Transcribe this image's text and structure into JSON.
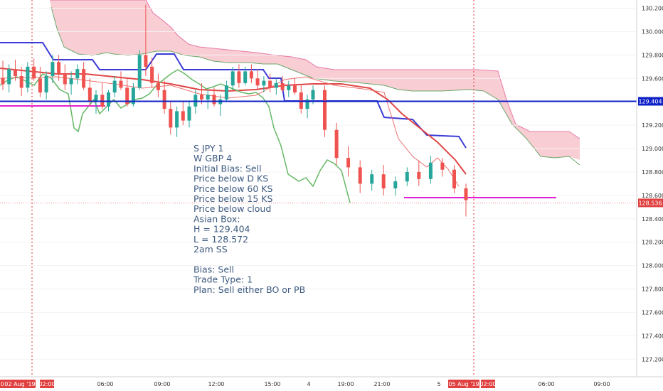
{
  "colors": {
    "cloud_fill": "#f8c8cf",
    "cloud_edge_a": "#e878a8",
    "cloud_edge_b": "#6aa86a",
    "candle_up": "#26a69a",
    "candle_down": "#ef5350",
    "blue_line": "#3b3bd8",
    "red_line": "#e04646",
    "green_line": "#66b866",
    "thin_red": "#f07070",
    "magenta": "#e020d0",
    "hline_blue": "#0d20c8",
    "current_price_dot": "#e05050",
    "session_line": "#e03030",
    "axis_text": "#333333",
    "note_text": "#3d5a80",
    "badge_blue": "#0d20c8",
    "badge_red": "#e04040"
  },
  "chart_data": {
    "type": "candlestick",
    "y_axis": {
      "ylim": [
        127.05,
        130.27
      ],
      "ticks": [
        "130.200",
        "130.000",
        "129.800",
        "129.600",
        "129.400",
        "129.200",
        "129.000",
        "128.800",
        "128.600",
        "128.400",
        "128.200",
        "128.000",
        "127.800",
        "127.600",
        "127.400",
        "127.200"
      ]
    },
    "x_axis": {
      "ticks": [
        "01",
        "02 Aug '19",
        "02:00",
        "06:00",
        "09:00",
        "12:00",
        "15:00",
        "4",
        "19:00",
        "21:00",
        "5",
        "05 Aug '19",
        "02:00",
        "06:00",
        "09:00"
      ]
    },
    "price_lines": [
      {
        "label": "129.404",
        "value": 129.404,
        "style": "solid",
        "color_key": "hline_blue"
      },
      {
        "label": "128.536",
        "value": 128.536,
        "style": "dotted",
        "color_key": "current_price_dot"
      }
    ],
    "annotation_lines": [
      "S JPY 1",
      "W GBP 4",
      "Initial Bias: Sell",
      "Price below D KS",
      "Price below 60 KS",
      "Price below 15 KS",
      "Price below cloud",
      "Asian Box:",
      "H = 129.404",
      "L = 128.572",
      "2am SS",
      "",
      "Bias:  Sell",
      "Trade Type: 1",
      "Plan: Sell either BO or PB"
    ],
    "candles": [
      [
        129.6,
        129.75,
        129.5,
        129.55
      ],
      [
        129.55,
        129.72,
        129.48,
        129.68
      ],
      [
        129.68,
        129.76,
        129.58,
        129.62
      ],
      [
        129.62,
        129.7,
        129.45,
        129.52
      ],
      [
        129.52,
        129.74,
        129.48,
        129.7
      ],
      [
        129.7,
        129.77,
        129.58,
        129.6
      ],
      [
        129.6,
        129.7,
        129.44,
        129.48
      ],
      [
        129.48,
        129.66,
        129.42,
        129.62
      ],
      [
        129.62,
        129.8,
        129.56,
        129.74
      ],
      [
        129.74,
        129.8,
        129.58,
        129.64
      ],
      [
        129.64,
        129.72,
        129.5,
        129.55
      ],
      [
        129.55,
        129.66,
        129.46,
        129.6
      ],
      [
        129.6,
        129.72,
        129.55,
        129.68
      ],
      [
        129.68,
        129.74,
        129.5,
        129.52
      ],
      [
        129.52,
        129.6,
        129.36,
        129.4
      ],
      [
        129.4,
        129.5,
        129.3,
        129.46
      ],
      [
        129.46,
        129.56,
        129.34,
        129.36
      ],
      [
        129.36,
        129.5,
        129.32,
        129.48
      ],
      [
        129.48,
        129.62,
        129.44,
        129.58
      ],
      [
        129.58,
        129.66,
        129.5,
        129.52
      ],
      [
        129.52,
        129.6,
        129.36,
        129.38
      ],
      [
        129.38,
        129.56,
        129.36,
        129.52
      ],
      [
        129.52,
        129.84,
        129.5,
        129.8
      ],
      [
        129.8,
        130.23,
        129.62,
        129.7
      ],
      [
        129.7,
        129.78,
        129.52,
        129.56
      ],
      [
        129.56,
        129.64,
        129.44,
        129.5
      ],
      [
        129.5,
        129.58,
        129.3,
        129.34
      ],
      [
        129.34,
        129.4,
        129.12,
        129.18
      ],
      [
        129.18,
        129.36,
        129.1,
        129.32
      ],
      [
        129.32,
        129.4,
        129.2,
        129.24
      ],
      [
        129.24,
        129.4,
        129.18,
        129.36
      ],
      [
        129.36,
        129.5,
        129.3,
        129.46
      ],
      [
        129.46,
        129.56,
        129.38,
        129.42
      ],
      [
        129.42,
        129.5,
        129.34,
        129.46
      ],
      [
        129.46,
        129.52,
        129.36,
        129.38
      ],
      [
        129.38,
        129.46,
        129.28,
        129.42
      ],
      [
        129.42,
        129.58,
        129.4,
        129.54
      ],
      [
        129.54,
        129.7,
        129.5,
        129.66
      ],
      [
        129.66,
        129.72,
        129.52,
        129.56
      ],
      [
        129.56,
        129.7,
        129.54,
        129.66
      ],
      [
        129.66,
        129.72,
        129.56,
        129.6
      ],
      [
        129.6,
        129.68,
        129.5,
        129.54
      ],
      [
        129.54,
        129.62,
        129.48,
        129.58
      ],
      [
        129.58,
        129.64,
        129.48,
        129.52
      ],
      [
        129.52,
        129.6,
        129.46,
        129.56
      ],
      [
        129.56,
        129.62,
        129.48,
        129.5
      ],
      [
        129.5,
        129.58,
        129.44,
        129.54
      ],
      [
        129.54,
        129.6,
        129.46,
        129.48
      ],
      [
        129.48,
        129.54,
        129.3,
        129.34
      ],
      [
        129.34,
        129.46,
        129.26,
        129.42
      ],
      [
        129.42,
        129.54,
        129.38,
        129.5
      ],
      [
        129.5,
        129.54,
        129.1,
        129.16
      ],
      [
        129.16,
        129.22,
        128.86,
        128.92
      ],
      [
        128.92,
        129.02,
        128.76,
        128.84
      ],
      [
        128.84,
        128.9,
        128.62,
        128.7
      ],
      [
        128.7,
        128.82,
        128.64,
        128.78
      ],
      [
        128.78,
        128.86,
        128.6,
        128.66
      ],
      [
        128.66,
        128.76,
        128.6,
        128.72
      ],
      [
        128.72,
        128.84,
        128.68,
        128.8
      ],
      [
        128.8,
        128.9,
        128.68,
        128.74
      ],
      [
        128.74,
        128.94,
        128.7,
        128.88
      ],
      [
        128.88,
        128.92,
        128.76,
        128.82
      ],
      [
        128.82,
        128.86,
        128.62,
        128.66
      ],
      [
        128.66,
        128.7,
        128.42,
        128.56
      ]
    ]
  }
}
